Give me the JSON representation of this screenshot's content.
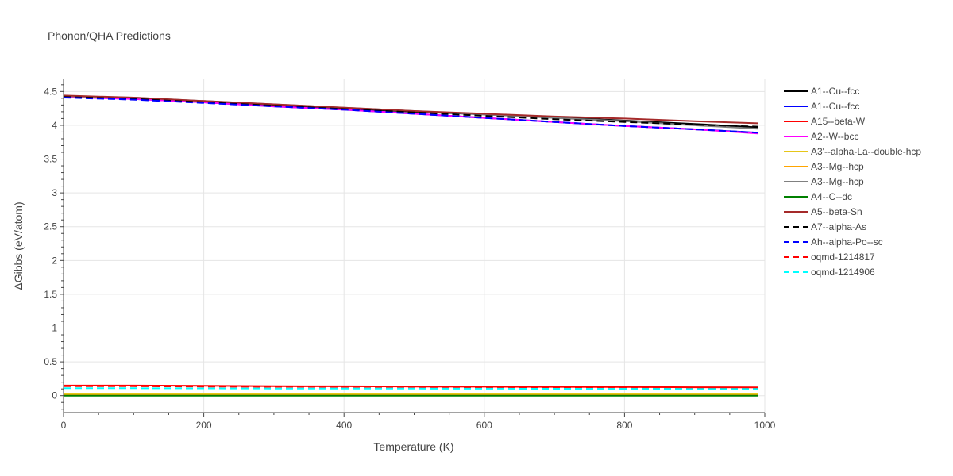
{
  "chart_data": {
    "type": "line",
    "title": "Phonon/QHA Predictions",
    "xlabel": "Temperature (K)",
    "ylabel": "ΔGibbs (eV/atom)",
    "xlim": [
      0,
      1000
    ],
    "ylim": [
      -0.25,
      4.68
    ],
    "x_ticks": [
      0,
      200,
      400,
      600,
      800,
      1000
    ],
    "x_tick_labels": [
      "0",
      "200",
      "400",
      "600",
      "800",
      "1000"
    ],
    "y_ticks": [
      0,
      0.5,
      1,
      1.5,
      2,
      2.5,
      3,
      3.5,
      4,
      4.5
    ],
    "y_tick_labels": [
      "0",
      "0.5",
      "1",
      "1.5",
      "2",
      "2.5",
      "3",
      "3.5",
      "4",
      "4.5"
    ],
    "grid": true,
    "legend_position": "right",
    "x": [
      0,
      100,
      200,
      300,
      400,
      500,
      600,
      700,
      800,
      900,
      990
    ],
    "series": [
      {
        "name": "A1--Cu--fcc",
        "color": "#000000",
        "dash": "solid",
        "values": [
          4.43,
          4.4,
          4.35,
          4.3,
          4.25,
          4.2,
          4.16,
          4.12,
          4.07,
          4.02,
          3.97
        ]
      },
      {
        "name": "A1--Cu--fcc",
        "color": "#0000ff",
        "dash": "solid",
        "values": [
          4.42,
          4.39,
          4.34,
          4.28,
          4.23,
          4.17,
          4.11,
          4.05,
          3.99,
          3.94,
          3.89
        ]
      },
      {
        "name": "A15--beta-W",
        "color": "#ff0000",
        "dash": "solid",
        "values": [
          0.15,
          0.15,
          0.145,
          0.14,
          0.138,
          0.135,
          0.133,
          0.13,
          0.128,
          0.125,
          0.123
        ]
      },
      {
        "name": "A2--W--bcc",
        "color": "#ff00ff",
        "dash": "solid",
        "values": [
          4.42,
          4.39,
          4.34,
          4.28,
          4.23,
          4.17,
          4.11,
          4.05,
          3.99,
          3.94,
          3.88
        ]
      },
      {
        "name": "A3'--alpha-La--double-hcp",
        "color": "#e6c619",
        "dash": "solid",
        "values": [
          0.02,
          0.02,
          0.02,
          0.02,
          0.02,
          0.02,
          0.02,
          0.02,
          0.02,
          0.02,
          0.02
        ]
      },
      {
        "name": "A3--Mg--hcp",
        "color": "#ffa500",
        "dash": "solid",
        "values": [
          0.005,
          0.005,
          0.005,
          0.005,
          0.005,
          0.005,
          0.005,
          0.005,
          0.005,
          0.005,
          0.005
        ]
      },
      {
        "name": "A3--Mg--hcp",
        "color": "#808080",
        "dash": "solid",
        "values": [
          4.43,
          4.41,
          4.36,
          4.31,
          4.26,
          4.21,
          4.16,
          4.11,
          4.06,
          4.0,
          3.95
        ]
      },
      {
        "name": "A4--C--dc",
        "color": "#008000",
        "dash": "solid",
        "values": [
          0.0,
          0.0,
          0.0,
          0.0,
          0.0,
          0.0,
          0.0,
          0.0,
          0.0,
          0.0,
          0.0
        ]
      },
      {
        "name": "A5--beta-Sn",
        "color": "#a52a2a",
        "dash": "solid",
        "values": [
          4.44,
          4.41,
          4.36,
          4.31,
          4.26,
          4.21,
          4.17,
          4.13,
          4.1,
          4.06,
          4.03
        ]
      },
      {
        "name": "A7--alpha-As",
        "color": "#000000",
        "dash": "dash",
        "values": [
          4.42,
          4.39,
          4.34,
          4.29,
          4.24,
          4.19,
          4.14,
          4.09,
          4.05,
          4.01,
          3.98
        ]
      },
      {
        "name": "Ah--alpha-Po--sc",
        "color": "#0000ff",
        "dash": "dash",
        "values": [
          4.41,
          4.38,
          4.33,
          4.28,
          4.23,
          4.17,
          4.11,
          4.05,
          3.99,
          3.94,
          3.89
        ]
      },
      {
        "name": "oqmd-1214817",
        "color": "#ff0000",
        "dash": "dash",
        "values": [
          0.14,
          0.14,
          0.135,
          0.132,
          0.13,
          0.128,
          0.126,
          0.124,
          0.122,
          0.12,
          0.118
        ]
      },
      {
        "name": "oqmd-1214906",
        "color": "#00ffff",
        "dash": "dash",
        "values": [
          0.11,
          0.11,
          0.108,
          0.106,
          0.105,
          0.104,
          0.103,
          0.102,
          0.101,
          0.1,
          0.1
        ]
      }
    ]
  }
}
